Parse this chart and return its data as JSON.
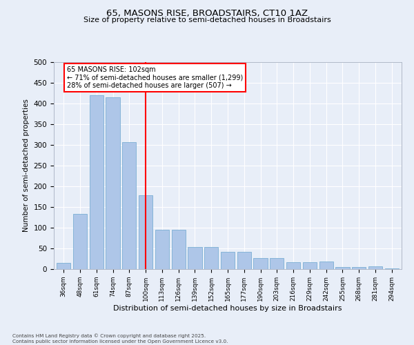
{
  "title1": "65, MASONS RISE, BROADSTAIRS, CT10 1AZ",
  "title2": "Size of property relative to semi-detached houses in Broadstairs",
  "xlabel": "Distribution of semi-detached houses by size in Broadstairs",
  "ylabel": "Number of semi-detached properties",
  "footnote": "Contains HM Land Registry data © Crown copyright and database right 2025.\nContains public sector information licensed under the Open Government Licence v3.0.",
  "categories": [
    "36sqm",
    "48sqm",
    "61sqm",
    "74sqm",
    "87sqm",
    "100sqm",
    "113sqm",
    "126sqm",
    "139sqm",
    "152sqm",
    "165sqm",
    "177sqm",
    "190sqm",
    "203sqm",
    "216sqm",
    "229sqm",
    "242sqm",
    "255sqm",
    "268sqm",
    "281sqm",
    "294sqm"
  ],
  "values": [
    15,
    133,
    420,
    415,
    307,
    179,
    95,
    95,
    53,
    53,
    42,
    42,
    26,
    26,
    16,
    16,
    19,
    5,
    5,
    6,
    1
  ],
  "bar_color": "#aec6e8",
  "bar_edge_color": "#7aafd4",
  "vline_x": 5,
  "vline_color": "red",
  "vline_label": "65 MASONS RISE: 102sqm",
  "annotation_line1": "← 71% of semi-detached houses are smaller (1,299)",
  "annotation_line2": "28% of semi-detached houses are larger (507) →",
  "ylim": [
    0,
    500
  ],
  "yticks": [
    0,
    50,
    100,
    150,
    200,
    250,
    300,
    350,
    400,
    450,
    500
  ],
  "bg_color": "#e8eef8",
  "plot_bg_color": "#e8eef8",
  "grid_color": "#ffffff"
}
